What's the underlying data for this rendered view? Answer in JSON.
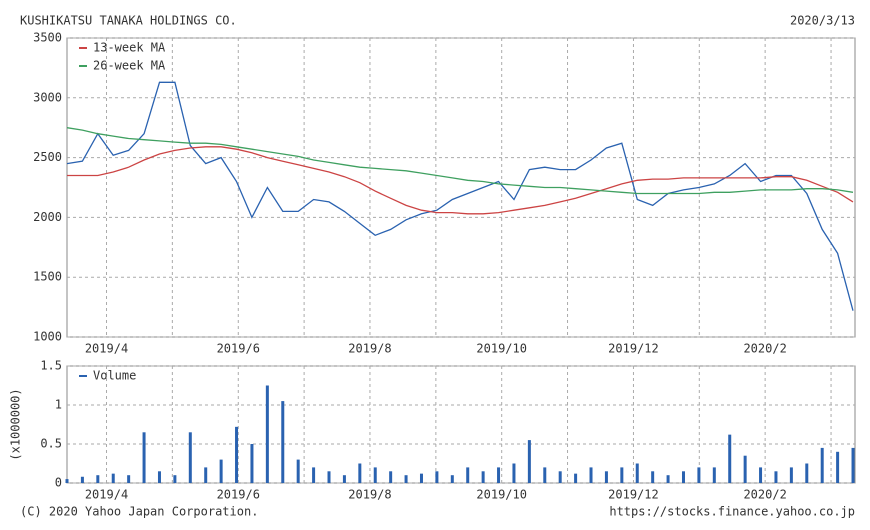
{
  "header": {
    "title": "KUSHIKATSU TANAKA HOLDINGS CO.",
    "date": "2020/3/13"
  },
  "footer": {
    "copyright": "(C) 2020 Yahoo Japan Corporation.",
    "url": "https://stocks.finance.yahoo.co.jp"
  },
  "chart_data": [
    {
      "type": "line",
      "x": [
        2019.2,
        2019.2195,
        2019.239,
        2019.2585,
        2019.278,
        2019.2975,
        2019.317,
        2019.3365,
        2019.356,
        2019.3755,
        2019.395,
        2019.4145,
        2019.434,
        2019.4535,
        2019.473,
        2019.4925,
        2019.512,
        2019.5315,
        2019.551,
        2019.5705,
        2019.59,
        2019.6095,
        2019.629,
        2019.6485,
        2019.668,
        2019.6875,
        2019.707,
        2019.7265,
        2019.746,
        2019.7655,
        2019.785,
        2019.8045,
        2019.824,
        2019.8435,
        2019.863,
        2019.8825,
        2019.902,
        2019.9215,
        2019.941,
        2019.9605,
        2019.98,
        2019.9995,
        2020.019,
        2020.0385,
        2020.058,
        2020.0775,
        2020.097,
        2020.1165,
        2020.136,
        2020.1555,
        2020.175,
        2020.1945
      ],
      "series": [
        {
          "color": "#2a62b0",
          "values": [
            2450,
            2470,
            2700,
            2520,
            2560,
            2700,
            3130,
            3130,
            2600,
            2450,
            2500,
            2300,
            2000,
            2250,
            2050,
            2050,
            2150,
            2130,
            2050,
            1950,
            1850,
            1900,
            1980,
            2030,
            2060,
            2150,
            2200,
            2250,
            2300,
            2150,
            2400,
            2420,
            2400,
            2400,
            2480,
            2580,
            2620,
            2150,
            2100,
            2200,
            2230,
            2250,
            2280,
            2350,
            2450,
            2300,
            2350,
            2350,
            2200,
            1900,
            1700,
            1220
          ]
        },
        {
          "name": "13-week MA",
          "color": "#cc4444",
          "values": [
            2350,
            2350,
            2350,
            2380,
            2420,
            2480,
            2530,
            2560,
            2580,
            2590,
            2590,
            2570,
            2540,
            2500,
            2470,
            2440,
            2410,
            2380,
            2340,
            2290,
            2220,
            2160,
            2100,
            2060,
            2040,
            2040,
            2030,
            2030,
            2040,
            2060,
            2080,
            2100,
            2130,
            2160,
            2200,
            2240,
            2280,
            2310,
            2320,
            2320,
            2330,
            2330,
            2330,
            2330,
            2330,
            2330,
            2340,
            2340,
            2310,
            2260,
            2210,
            2130
          ]
        },
        {
          "name": "26-week MA",
          "color": "#3fa060",
          "values": [
            2750,
            2730,
            2700,
            2680,
            2660,
            2650,
            2640,
            2630,
            2620,
            2620,
            2610,
            2590,
            2570,
            2550,
            2530,
            2510,
            2480,
            2460,
            2440,
            2420,
            2410,
            2400,
            2390,
            2370,
            2350,
            2330,
            2310,
            2300,
            2280,
            2270,
            2260,
            2250,
            2250,
            2240,
            2230,
            2220,
            2210,
            2200,
            2200,
            2200,
            2200,
            2200,
            2210,
            2210,
            2220,
            2230,
            2230,
            2230,
            2240,
            2240,
            2230,
            2210
          ]
        }
      ],
      "xlim": [
        2019.2,
        2020.197
      ],
      "xticks": [
        {
          "value": 2019.25,
          "label": "2019/4"
        },
        {
          "value": 2019.4167,
          "label": "2019/6"
        },
        {
          "value": 2019.5833,
          "label": "2019/8"
        },
        {
          "value": 2019.75,
          "label": "2019/10"
        },
        {
          "value": 2019.9167,
          "label": "2019/12"
        },
        {
          "value": 2020.0833,
          "label": "2020/2"
        }
      ],
      "xminor": [
        2019.3333,
        2019.5,
        2019.6667,
        2019.8333,
        2020.0,
        2020.1667
      ],
      "ylim": [
        1000,
        3500
      ],
      "yticks": [
        1000,
        1500,
        2000,
        2500,
        3000,
        3500
      ],
      "grid": true
    },
    {
      "type": "bar",
      "ylabel": "(x1000000)",
      "x": [
        2019.2,
        2019.2195,
        2019.239,
        2019.2585,
        2019.278,
        2019.2975,
        2019.317,
        2019.3365,
        2019.356,
        2019.3755,
        2019.395,
        2019.4145,
        2019.434,
        2019.4535,
        2019.473,
        2019.4925,
        2019.512,
        2019.5315,
        2019.551,
        2019.5705,
        2019.59,
        2019.6095,
        2019.629,
        2019.6485,
        2019.668,
        2019.6875,
        2019.707,
        2019.7265,
        2019.746,
        2019.7655,
        2019.785,
        2019.8045,
        2019.824,
        2019.8435,
        2019.863,
        2019.8825,
        2019.902,
        2019.9215,
        2019.941,
        2019.9605,
        2019.98,
        2019.9995,
        2020.019,
        2020.0385,
        2020.058,
        2020.0775,
        2020.097,
        2020.1165,
        2020.136,
        2020.1555,
        2020.175,
        2020.1945
      ],
      "series": [
        {
          "name": "Volume",
          "color": "#2a62b0",
          "values": [
            0.05,
            0.08,
            0.1,
            0.12,
            0.1,
            0.65,
            0.15,
            0.1,
            0.65,
            0.2,
            0.3,
            0.72,
            0.5,
            1.25,
            1.05,
            0.3,
            0.2,
            0.15,
            0.1,
            0.25,
            0.2,
            0.15,
            0.1,
            0.12,
            0.15,
            0.1,
            0.2,
            0.15,
            0.2,
            0.25,
            0.55,
            0.2,
            0.15,
            0.12,
            0.2,
            0.15,
            0.2,
            0.25,
            0.15,
            0.1,
            0.15,
            0.2,
            0.2,
            0.62,
            0.35,
            0.2,
            0.15,
            0.2,
            0.25,
            0.45,
            0.4,
            0.45
          ]
        }
      ],
      "xlim": [
        2019.2,
        2020.197
      ],
      "xticks": [
        {
          "value": 2019.25,
          "label": "2019/4"
        },
        {
          "value": 2019.4167,
          "label": "2019/6"
        },
        {
          "value": 2019.5833,
          "label": "2019/8"
        },
        {
          "value": 2019.75,
          "label": "2019/10"
        },
        {
          "value": 2019.9167,
          "label": "2019/12"
        },
        {
          "value": 2020.0833,
          "label": "2020/2"
        }
      ],
      "xminor": [
        2019.3333,
        2019.5,
        2019.6667,
        2019.8333,
        2020.0,
        2020.1667
      ],
      "ylim": [
        0,
        1.5
      ],
      "yticks": [
        0,
        0.5,
        1,
        1.5
      ],
      "grid": true
    }
  ]
}
